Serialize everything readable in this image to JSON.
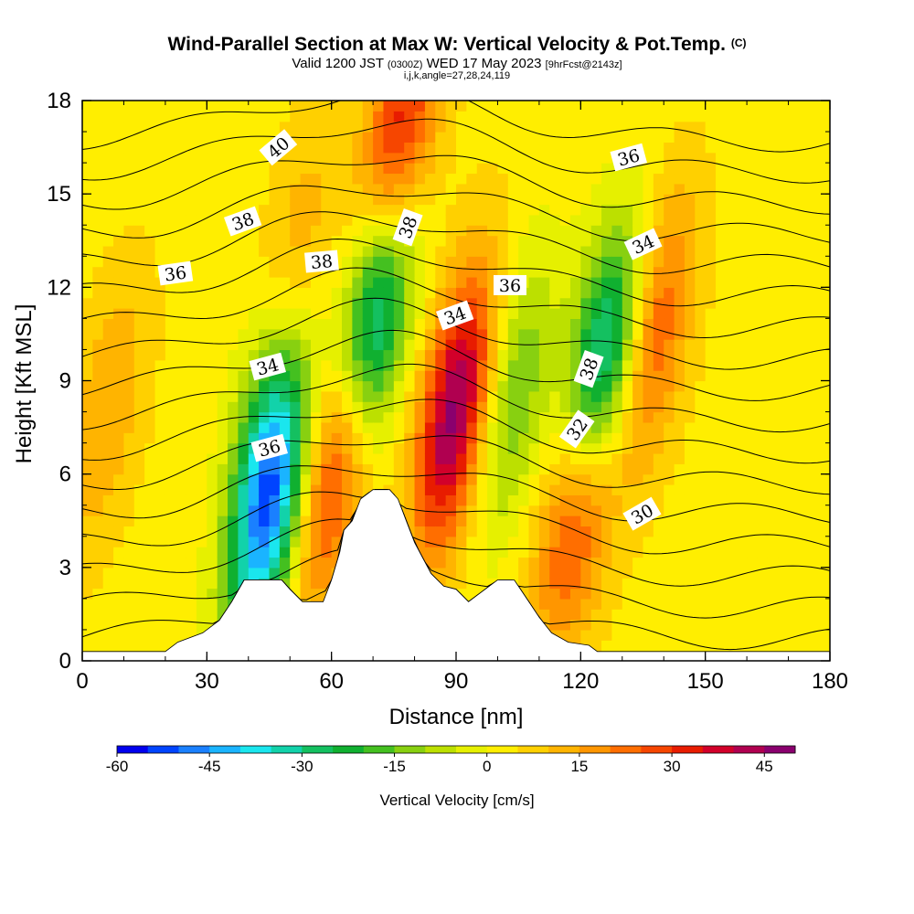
{
  "header": {
    "title": "Wind-Parallel Section at Max W: Vertical Velocity & Pot.Temp.",
    "title_mark": "(C)",
    "valid_prefix": "Valid 1200 JST",
    "valid_utc": "(0300Z)",
    "valid_date": "WED 17 May 2023",
    "forecast_tag": "[9hrFcst@2143z]",
    "index_line": "i,j,k,angle=27,28,24,119"
  },
  "chart_data": {
    "type": "heatmap",
    "xlabel": "Distance [nm]",
    "ylabel": "Height [Kft MSL]",
    "xlim": [
      0,
      180
    ],
    "ylim": [
      0,
      18
    ],
    "x_ticks": [
      "0",
      "30",
      "60",
      "90",
      "120",
      "150",
      "180"
    ],
    "y_ticks": [
      "0",
      "3",
      "6",
      "9",
      "12",
      "15",
      "18"
    ],
    "colorbar": {
      "label": "Vertical Velocity [cm/s]",
      "tick_labels": [
        "-60",
        "-45",
        "-30",
        "-15",
        "0",
        "15",
        "30",
        "45"
      ],
      "range": [
        -60,
        50
      ],
      "step": 5,
      "colors": [
        "#0000ee",
        "#0044ff",
        "#1a80ff",
        "#1ab4ff",
        "#1ae6ee",
        "#12d2aa",
        "#14c060",
        "#10b030",
        "#44c020",
        "#88d010",
        "#bce000",
        "#e6f000",
        "#ffee00",
        "#ffd000",
        "#ffb400",
        "#ff9600",
        "#ff6e00",
        "#f64600",
        "#e81c00",
        "#d2002a",
        "#b00050",
        "#8a006e"
      ]
    },
    "theta_contour_labels": [
      "40",
      "38",
      "36",
      "38",
      "36",
      "34",
      "38",
      "34",
      "36",
      "32",
      "36",
      "34",
      "38",
      "36",
      "32",
      "30"
    ],
    "terrain": [
      [
        0,
        0.3
      ],
      [
        20,
        0.3
      ],
      [
        23,
        0.6
      ],
      [
        29,
        0.9
      ],
      [
        33,
        1.3
      ],
      [
        36,
        1.9
      ],
      [
        39,
        2.6
      ],
      [
        48,
        2.6
      ],
      [
        50,
        2.3
      ],
      [
        53,
        1.9
      ],
      [
        58,
        1.9
      ],
      [
        60,
        2.6
      ],
      [
        62,
        3.5
      ],
      [
        63,
        4.2
      ],
      [
        65,
        4.5
      ],
      [
        67,
        5.2
      ],
      [
        70,
        5.5
      ],
      [
        74,
        5.5
      ],
      [
        76,
        5.2
      ],
      [
        78,
        4.5
      ],
      [
        80,
        3.8
      ],
      [
        82,
        3.3
      ],
      [
        84,
        2.8
      ],
      [
        87,
        2.4
      ],
      [
        90,
        2.3
      ],
      [
        93,
        1.9
      ],
      [
        96,
        2.2
      ],
      [
        100,
        2.6
      ],
      [
        104,
        2.6
      ],
      [
        107,
        2.0
      ],
      [
        110,
        1.4
      ],
      [
        113,
        0.9
      ],
      [
        117,
        0.6
      ],
      [
        122,
        0.5
      ],
      [
        124,
        0.3
      ],
      [
        180,
        0.3
      ]
    ],
    "w_features": [
      {
        "x": 45,
        "y": 5.0,
        "w": -52
      },
      {
        "x": 46,
        "y": 9.5,
        "w": -20
      },
      {
        "x": 50,
        "y": 12.0,
        "w": 20
      },
      {
        "x": 61,
        "y": 6.5,
        "w": 35
      },
      {
        "x": 70,
        "y": 11.0,
        "w": -48
      },
      {
        "x": 76,
        "y": 16.5,
        "w": 35
      },
      {
        "x": 90,
        "y": 8.0,
        "w": 45
      },
      {
        "x": 103,
        "y": 8.5,
        "w": -20
      },
      {
        "x": 120,
        "y": 5.5,
        "w": 40
      },
      {
        "x": 125,
        "y": 9.0,
        "w": -55
      },
      {
        "x": 137,
        "y": 10.5,
        "w": 25
      },
      {
        "x": 6,
        "y": 8.0,
        "w": 12
      }
    ]
  }
}
